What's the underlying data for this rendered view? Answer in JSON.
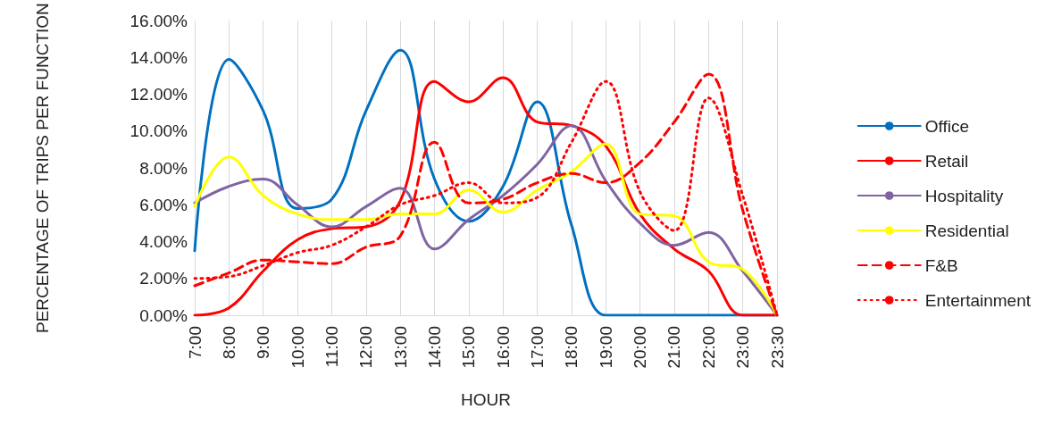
{
  "chart_data": {
    "type": "line",
    "xlabel": "HOUR",
    "ylabel": "PERCENTAGE OF TRIPS PER FUNCTION",
    "categories": [
      "7:00",
      "8:00",
      "9:00",
      "10:00",
      "11:00",
      "12:00",
      "13:00",
      "14:00",
      "15:00",
      "16:00",
      "17:00",
      "18:00",
      "19:00",
      "20:00",
      "21:00",
      "22:00",
      "23:00",
      "23:30"
    ],
    "series": [
      {
        "name": "Office",
        "color": "#0070c0",
        "line_style": "solid",
        "values": [
          3.5,
          13.9,
          11.1,
          5.8,
          6.3,
          11.1,
          14.4,
          7.4,
          5.1,
          7.0,
          11.6,
          4.9,
          0,
          0,
          0,
          0,
          0,
          0
        ]
      },
      {
        "name": "Retail",
        "color": "#ff0000",
        "line_style": "solid",
        "values": [
          0,
          0.4,
          2.4,
          4.1,
          4.7,
          4.8,
          6.2,
          12.7,
          11.6,
          12.9,
          10.5,
          10.3,
          9.2,
          5.5,
          3.6,
          2.4,
          0,
          0
        ]
      },
      {
        "name": "Hospitality",
        "color": "#8064a2",
        "line_style": "solid",
        "values": [
          6.1,
          7.0,
          7.4,
          6.0,
          4.8,
          5.9,
          6.9,
          3.6,
          5.2,
          6.5,
          8.2,
          10.3,
          7.3,
          5.0,
          3.8,
          4.5,
          2.4,
          0
        ]
      },
      {
        "name": "Residential",
        "color": "#ffff00",
        "line_style": "solid",
        "values": [
          5.9,
          8.6,
          6.5,
          5.5,
          5.2,
          5.2,
          5.5,
          5.5,
          6.8,
          5.6,
          6.8,
          7.8,
          9.3,
          5.5,
          5.4,
          2.9,
          2.5,
          0
        ]
      },
      {
        "name": "F&B",
        "color": "#ff0000",
        "line_style": "dashed",
        "values": [
          1.6,
          2.3,
          3.0,
          2.9,
          2.8,
          3.7,
          4.3,
          9.4,
          6.1,
          6.3,
          7.2,
          7.7,
          7.2,
          8.3,
          10.5,
          13.1,
          5.7,
          0
        ]
      },
      {
        "name": "Entertainment",
        "color": "#ff0000",
        "line_style": "dotted",
        "values": [
          2.0,
          2.1,
          2.7,
          3.4,
          3.8,
          4.8,
          6.0,
          6.5,
          7.2,
          6.1,
          6.4,
          9.4,
          12.7,
          6.7,
          4.6,
          11.8,
          6.5,
          0
        ]
      }
    ],
    "ylim": [
      0,
      16
    ],
    "yticks": [
      {
        "value": 0,
        "label": "0.00%"
      },
      {
        "value": 2,
        "label": "2.00%"
      },
      {
        "value": 4,
        "label": "4.00%"
      },
      {
        "value": 6,
        "label": "6.00%"
      },
      {
        "value": 8,
        "label": "8.00%"
      },
      {
        "value": 10,
        "label": "10.00%"
      },
      {
        "value": 12,
        "label": "12.00%"
      },
      {
        "value": 14,
        "label": "14.00%"
      },
      {
        "value": 16,
        "label": "16.00%"
      }
    ],
    "grid": "x",
    "legend": "right",
    "marker": "none"
  }
}
